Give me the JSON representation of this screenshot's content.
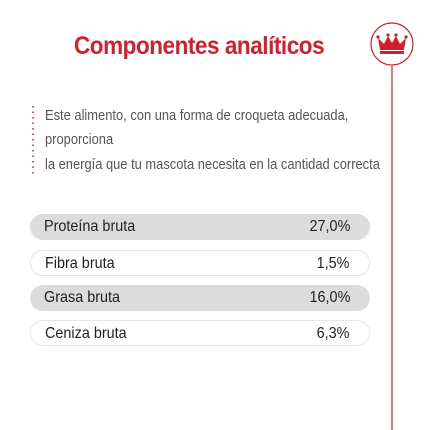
{
  "header": {
    "title": "Componentes analíticos"
  },
  "description": {
    "lines": [
      "Este alimento, con una forma de croqueta adecuada,",
      "proporciona",
      "la energía que tu mascota necesita en la cantidad correcta"
    ]
  },
  "table": {
    "rows": [
      [
        "Proteína bruta",
        "27,0%"
      ],
      [
        "Fibra bruta",
        "1,5%"
      ],
      [
        "Grasa bruta",
        "16,0%"
      ],
      [
        "Ceniza bruta",
        "6,3%"
      ]
    ]
  }
}
